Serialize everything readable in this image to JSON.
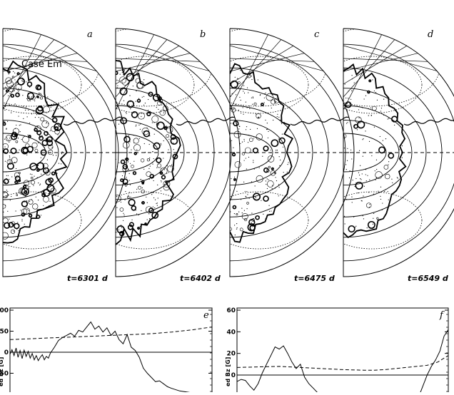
{
  "case_label": "Case Em",
  "meridional_panels": [
    {
      "letter": "a",
      "time": "t=6301 d",
      "activity": 1.0
    },
    {
      "letter": "b",
      "time": "t=6402 d",
      "activity": 0.8
    },
    {
      "letter": "c",
      "time": "t=6475 d",
      "activity": 0.6
    },
    {
      "letter": "d",
      "time": "t=6549 d",
      "activity": 0.35
    }
  ],
  "chart_data": [
    {
      "type": "line",
      "panel": "e",
      "ylabel": "ed Bz [G]",
      "ylim": [
        -100,
        100
      ],
      "yticks": [
        100,
        50,
        0,
        -50
      ],
      "xlim": [
        0,
        1
      ],
      "series": [
        {
          "style": "solid",
          "x": [
            0.0,
            0.01,
            0.02,
            0.03,
            0.04,
            0.05,
            0.06,
            0.07,
            0.08,
            0.09,
            0.1,
            0.11,
            0.12,
            0.13,
            0.14,
            0.15,
            0.16,
            0.17,
            0.18,
            0.19,
            0.2,
            0.22,
            0.24,
            0.26,
            0.28,
            0.3,
            0.32,
            0.34,
            0.36,
            0.38,
            0.4,
            0.42,
            0.44,
            0.46,
            0.48,
            0.5,
            0.52,
            0.54,
            0.56,
            0.58,
            0.6,
            0.62,
            0.64,
            0.66,
            0.68,
            0.7,
            0.72,
            0.74,
            0.76,
            0.78,
            0.8,
            0.84,
            0.88,
            0.92,
            0.96,
            1.0
          ],
          "y": [
            -5,
            6,
            -8,
            10,
            -12,
            4,
            -15,
            5,
            -10,
            2,
            -14,
            -3,
            -18,
            -8,
            -20,
            -12,
            -6,
            -18,
            -10,
            -14,
            -2,
            12,
            28,
            35,
            40,
            45,
            38,
            52,
            48,
            60,
            72,
            55,
            62,
            48,
            58,
            40,
            50,
            30,
            20,
            42,
            12,
            4,
            -12,
            -38,
            -50,
            -60,
            -70,
            -68,
            -75,
            -82,
            -86,
            -92,
            -95,
            -98,
            -100,
            -102
          ]
        },
        {
          "style": "dashed",
          "x": [
            0,
            0.1,
            0.2,
            0.3,
            0.4,
            0.5,
            0.6,
            0.7,
            0.8,
            0.9,
            1.0
          ],
          "y": [
            30,
            32,
            34,
            36,
            38,
            40,
            42,
            44,
            48,
            53,
            60
          ]
        }
      ]
    },
    {
      "type": "line",
      "panel": "f",
      "ylabel": "ed Bz [G]",
      "ylim": [
        -30,
        60
      ],
      "yticks": [
        60,
        40,
        20,
        0
      ],
      "xlim": [
        0,
        1
      ],
      "series": [
        {
          "style": "solid",
          "x": [
            0.0,
            0.02,
            0.04,
            0.06,
            0.08,
            0.1,
            0.12,
            0.14,
            0.16,
            0.18,
            0.2,
            0.22,
            0.24,
            0.26,
            0.28,
            0.3,
            0.32,
            0.34,
            0.36,
            0.38,
            0.4,
            0.44,
            0.48,
            0.52,
            0.56,
            0.6,
            0.64,
            0.68,
            0.72,
            0.76,
            0.8,
            0.84,
            0.86,
            0.88,
            0.9,
            0.92,
            0.94,
            0.96,
            0.98,
            1.0
          ],
          "y": [
            -6,
            -4,
            -5,
            -10,
            -14,
            -8,
            2,
            10,
            18,
            26,
            24,
            27,
            20,
            12,
            6,
            10,
            -2,
            -8,
            -12,
            -16,
            -20,
            -24,
            -26,
            -28,
            -30,
            -30,
            -30,
            -30,
            -30,
            -30,
            -30,
            -28,
            -20,
            -10,
            0,
            8,
            14,
            22,
            36,
            42
          ]
        },
        {
          "style": "dashed",
          "x": [
            0,
            0.1,
            0.2,
            0.3,
            0.4,
            0.5,
            0.6,
            0.65,
            0.7,
            0.8,
            0.9,
            0.95,
            1.0
          ],
          "y": [
            7,
            7.5,
            8,
            7,
            6,
            5,
            4.5,
            4.5,
            5,
            7,
            9,
            12,
            18
          ]
        }
      ]
    }
  ]
}
